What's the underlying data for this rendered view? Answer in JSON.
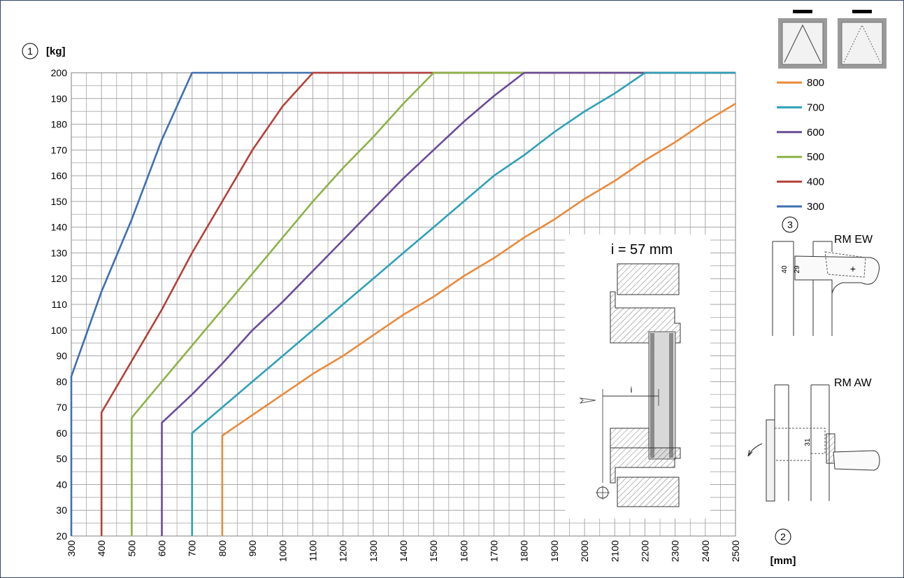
{
  "labels": {
    "badge_y": "1",
    "badge_x": "2",
    "badge_profile": "3",
    "y_unit": "[kg]",
    "x_unit": "[mm]",
    "inset_title": "i = 57 mm",
    "inset_dim_label": "i",
    "profile_ew": "RM EW",
    "profile_aw": "RM AW",
    "dim_40": "40",
    "dim_29": "29",
    "dim_31": "31"
  },
  "colors": {
    "s300": "#3f6fb0",
    "s400": "#b5403a",
    "s500": "#8db245",
    "s600": "#6a4b98",
    "s700": "#2ea0b8",
    "s800": "#ea8a3a",
    "grid": "#a6a6a6",
    "frame": "#33456b"
  },
  "icons": [
    "window-frame-solid-icon",
    "window-frame-dotted-icon",
    "pivot-arrow-icon"
  ],
  "chart_data": {
    "type": "line",
    "title": "",
    "xlabel": "[mm]",
    "ylabel": "[kg]",
    "xlim": [
      300,
      2500
    ],
    "ylim": [
      20,
      200
    ],
    "x_ticks": [
      300,
      400,
      500,
      600,
      700,
      800,
      900,
      1000,
      1100,
      1200,
      1300,
      1400,
      1500,
      1600,
      1700,
      1800,
      1900,
      2000,
      2100,
      2200,
      2300,
      2400,
      2500
    ],
    "y_ticks": [
      20,
      30,
      40,
      50,
      60,
      70,
      80,
      90,
      100,
      110,
      120,
      130,
      140,
      150,
      160,
      170,
      180,
      190,
      200
    ],
    "grid": true,
    "legend_position": "right",
    "series": [
      {
        "name": "800",
        "color": "#ea8a3a",
        "points": [
          [
            800,
            20
          ],
          [
            800,
            59
          ],
          [
            900,
            67
          ],
          [
            1000,
            75
          ],
          [
            1100,
            83
          ],
          [
            1200,
            90
          ],
          [
            1300,
            98
          ],
          [
            1400,
            106
          ],
          [
            1500,
            113
          ],
          [
            1600,
            121
          ],
          [
            1700,
            128
          ],
          [
            1800,
            136
          ],
          [
            1900,
            143
          ],
          [
            2000,
            151
          ],
          [
            2100,
            158
          ],
          [
            2200,
            166
          ],
          [
            2300,
            173
          ],
          [
            2400,
            181
          ],
          [
            2500,
            188
          ]
        ]
      },
      {
        "name": "700",
        "color": "#2ea0b8",
        "points": [
          [
            700,
            20
          ],
          [
            700,
            60
          ],
          [
            800,
            70
          ],
          [
            900,
            80
          ],
          [
            1000,
            90
          ],
          [
            1100,
            100
          ],
          [
            1200,
            110
          ],
          [
            1300,
            120
          ],
          [
            1400,
            130
          ],
          [
            1500,
            140
          ],
          [
            1600,
            150
          ],
          [
            1700,
            160
          ],
          [
            1800,
            168
          ],
          [
            1900,
            177
          ],
          [
            2000,
            185
          ],
          [
            2100,
            192
          ],
          [
            2200,
            200
          ],
          [
            2500,
            200
          ]
        ]
      },
      {
        "name": "600",
        "color": "#6a4b98",
        "points": [
          [
            600,
            20
          ],
          [
            600,
            64
          ],
          [
            700,
            75
          ],
          [
            800,
            87
          ],
          [
            900,
            100
          ],
          [
            1000,
            111
          ],
          [
            1100,
            123
          ],
          [
            1200,
            135
          ],
          [
            1300,
            147
          ],
          [
            1400,
            159
          ],
          [
            1500,
            170
          ],
          [
            1600,
            181
          ],
          [
            1700,
            191
          ],
          [
            1800,
            200
          ],
          [
            2500,
            200
          ]
        ]
      },
      {
        "name": "500",
        "color": "#8db245",
        "points": [
          [
            500,
            20
          ],
          [
            500,
            66
          ],
          [
            600,
            80
          ],
          [
            700,
            94
          ],
          [
            800,
            108
          ],
          [
            900,
            122
          ],
          [
            1000,
            136
          ],
          [
            1100,
            150
          ],
          [
            1200,
            163
          ],
          [
            1300,
            175
          ],
          [
            1400,
            188
          ],
          [
            1500,
            200
          ],
          [
            2500,
            200
          ]
        ]
      },
      {
        "name": "400",
        "color": "#b5403a",
        "points": [
          [
            400,
            20
          ],
          [
            400,
            68
          ],
          [
            500,
            88
          ],
          [
            600,
            108
          ],
          [
            700,
            130
          ],
          [
            800,
            150
          ],
          [
            900,
            170
          ],
          [
            1000,
            187
          ],
          [
            1100,
            200
          ],
          [
            2500,
            200
          ]
        ]
      },
      {
        "name": "300",
        "color": "#3f6fb0",
        "points": [
          [
            300,
            20
          ],
          [
            300,
            82
          ],
          [
            400,
            115
          ],
          [
            500,
            143
          ],
          [
            600,
            174
          ],
          [
            700,
            200
          ],
          [
            2500,
            200
          ]
        ]
      }
    ]
  }
}
